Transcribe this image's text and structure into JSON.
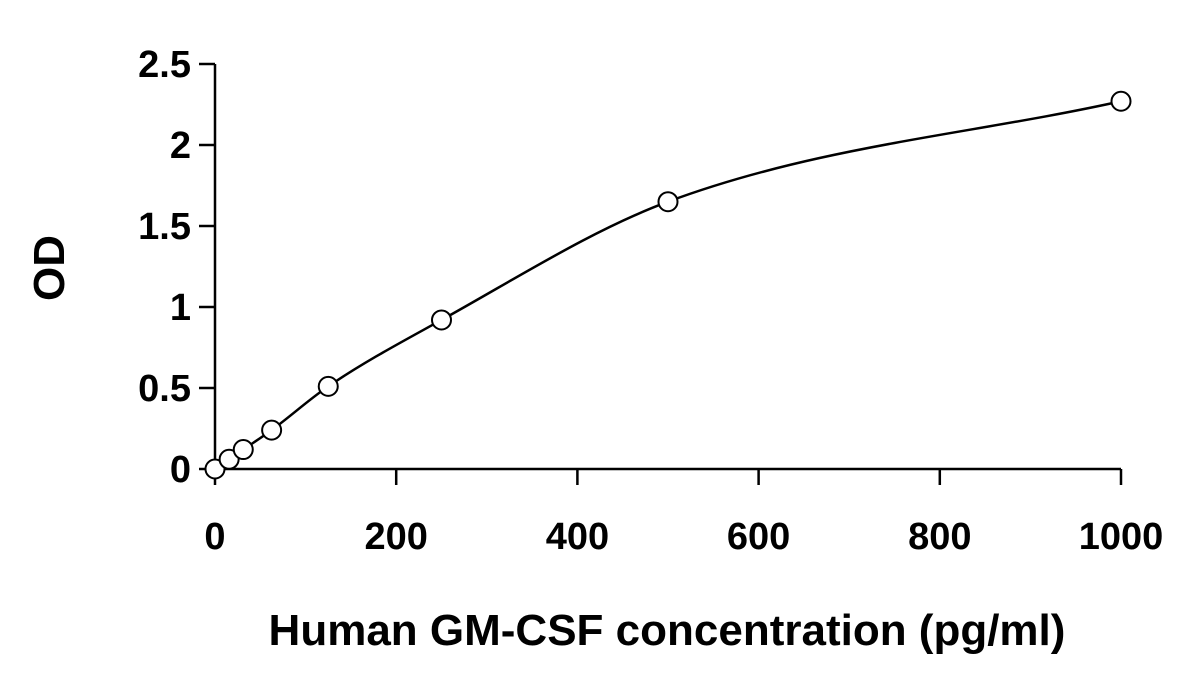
{
  "chart_data": {
    "type": "scatter",
    "title": "",
    "xlabel": "Human GM-CSF concentration (pg/ml)",
    "ylabel": "OD",
    "xlim": [
      0,
      1000
    ],
    "ylim": [
      0,
      2.5
    ],
    "x_ticks": [
      "0",
      "200",
      "400",
      "600",
      "800",
      "1000"
    ],
    "x_tick_values": [
      0,
      200,
      400,
      600,
      800,
      1000
    ],
    "y_ticks": [
      "0",
      "0.5",
      "1",
      "1.5",
      "2",
      "2.5"
    ],
    "y_tick_values": [
      0,
      0.5,
      1,
      1.5,
      2,
      2.5
    ],
    "grid": false,
    "legend": "none",
    "series": [
      {
        "marker": "open-circle",
        "fit": "smooth-curve",
        "x": [
          0,
          15.6,
          31.2,
          62.5,
          125,
          250,
          500,
          1000
        ],
        "y": [
          0.0,
          0.06,
          0.12,
          0.24,
          0.51,
          0.92,
          1.65,
          2.27
        ]
      }
    ],
    "colors": {
      "axis": "#000000",
      "marker_stroke": "#000000",
      "marker_fill": "#ffffff",
      "curve": "#000000"
    }
  }
}
